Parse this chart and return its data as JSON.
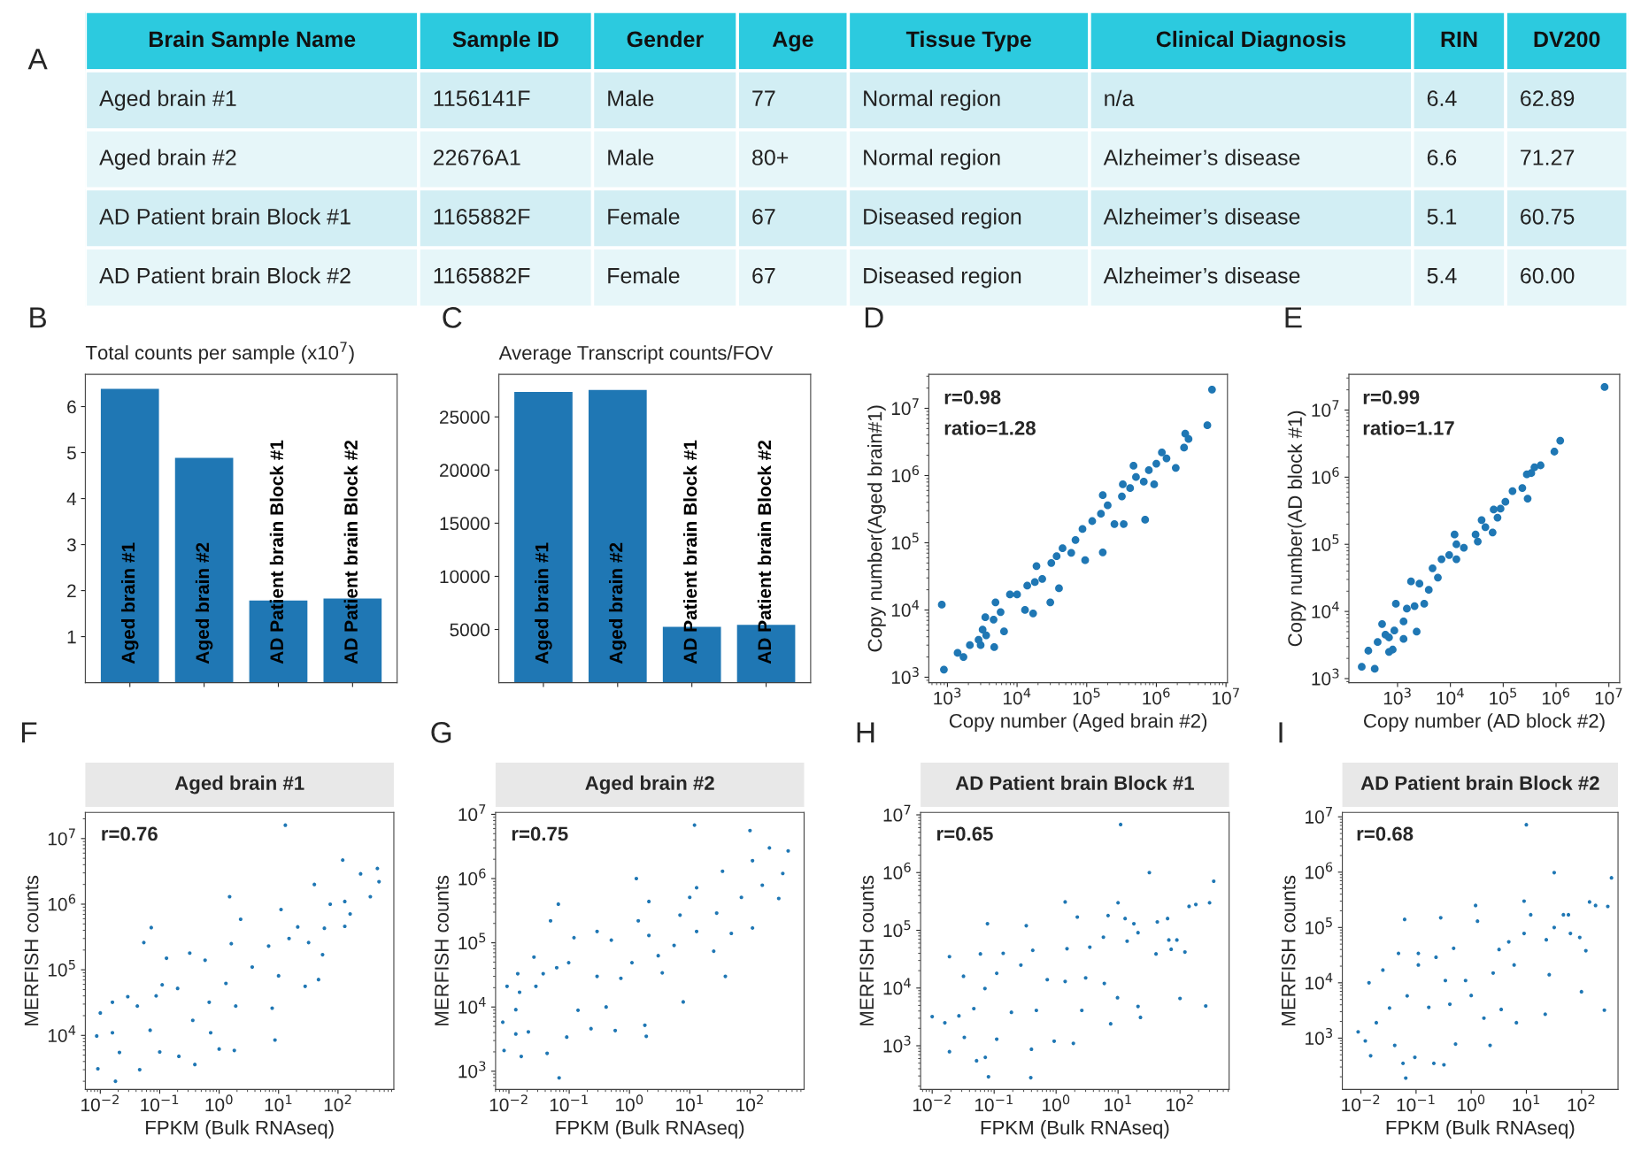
{
  "chart_data": [
    {
      "type": "other",
      "annotations": [
        "A"
      ],
      "categories": [
        "Brain Sample Name",
        "Sample ID",
        "Gender",
        "Age",
        "Tissue Type",
        "Clinical Diagnosis",
        "RIN",
        "DV200"
      ],
      "cell_labels": [
        [
          "Aged brain #1",
          "1156141F",
          "Male",
          "77",
          "Normal region",
          "n/a",
          "6.4",
          "62.89"
        ],
        [
          "Aged brain #2",
          "22676A1",
          "Male",
          "80+",
          "Normal region",
          "Alzheimer’s disease",
          "6.6",
          "71.27"
        ],
        [
          "AD Patient brain Block #1",
          "1165882F",
          "Female",
          "67",
          "Diseased region",
          "Alzheimer’s disease",
          "5.1",
          "60.75"
        ],
        [
          "AD Patient brain Block #2",
          "1165882F",
          "Female",
          "67",
          "Diseased region",
          "Alzheimer’s disease",
          "5.4",
          "60.00"
        ]
      ]
    },
    {
      "type": "bar",
      "title": "Total counts per sample (x10$^{7}$)",
      "annotations": [
        "B"
      ],
      "categories": [
        "Aged brain #1",
        "Aged brain #2",
        "AD Patient brain Block #1",
        "AD Patient brain Block #2"
      ],
      "values": [
        6.4,
        4.9,
        1.8,
        1.84
      ],
      "color": "#1f77b4",
      "ylim": [
        0,
        6.7
      ],
      "yticks": [
        1,
        2,
        3,
        4,
        5,
        6
      ]
    },
    {
      "type": "bar",
      "title": "Average Transcript counts/FOV",
      "annotations": [
        "C"
      ],
      "categories": [
        "Aged brain #1",
        "Aged brain #2",
        "AD Patient brain Block #1",
        "AD Patient brain Block #2"
      ],
      "values": [
        27400,
        27600,
        5300,
        5500
      ],
      "color": "#1f77b4",
      "ylim": [
        0,
        29000
      ],
      "yticks": [
        5000,
        10000,
        15000,
        20000,
        25000
      ]
    },
    {
      "type": "scatter",
      "annotations": [
        "D",
        "r=0.98",
        "ratio=1.28"
      ],
      "xlabel": "Copy number (Aged brain #2)",
      "ylabel": "Copy number(Aged brain#1)",
      "log": "xy",
      "marker": "circle",
      "xlim": [
        540,
        10500000
      ],
      "ylim": [
        830,
        32000000
      ],
      "xticks": [
        {
          "value": 1000,
          "label": "10$^{3}$"
        },
        {
          "value": 10000,
          "label": "10$^{4}$"
        },
        {
          "value": 100000,
          "label": "10$^{5}$"
        },
        {
          "value": 1000000,
          "label": "10$^{6}$"
        },
        {
          "value": 10000000,
          "label": "10$^{7}$"
        }
      ],
      "yticks": [
        {
          "value": 1000,
          "label": "10$^{3}$"
        },
        {
          "value": 10000,
          "label": "10$^{4}$"
        },
        {
          "value": 100000,
          "label": "10$^{5}$"
        },
        {
          "value": 1000000,
          "label": "10$^{6}$"
        },
        {
          "value": 10000000,
          "label": "10$^{7}$"
        }
      ],
      "series": [
        {
          "color": "#1f77b4",
          "x": [
            6300000.0,
            5400000.0,
            2600000.0,
            2900000.0,
            2500000.0,
            1200000.0,
            1400000.0,
            1900000.0,
            1000000.0,
            470000.0,
            780000.0,
            510000.0,
            660000.0,
            930000.0,
            330000.0,
            420000.0,
            690000.0,
            320000.0,
            170000.0,
            200000.0,
            250000.0,
            340000.0,
            160000.0,
            120000.0,
            87000.0,
            170000.0,
            95000.0,
            69000.0,
            60000.0,
            45000.0,
            31000.0,
            37000.0,
            40000.0,
            19000.0,
            23000.0,
            14000.0,
            18000.0,
            10000.0,
            7900.0,
            17000.0,
            30000.0,
            13000.0,
            4900.0,
            5800.0,
            4600.0,
            3500.0,
            3200.0,
            3600.0,
            4700.0,
            3000.0,
            2100.0,
            1700.0,
            1400.0,
            830,
            890,
            6500.0,
            2800.0
          ],
          "values": [
            19000000.0,
            5600000.0,
            4200000.0,
            3500000.0,
            2600000.0,
            2200000.0,
            1800000.0,
            1300000.0,
            1500000.0,
            1400000.0,
            1200000.0,
            950000.0,
            810000.0,
            740000.0,
            740000.0,
            650000.0,
            220000.0,
            490000.0,
            510000.0,
            360000.0,
            190000.0,
            190000.0,
            270000.0,
            210000.0,
            160000.0,
            72000.0,
            55000.0,
            110000.0,
            71000.0,
            83000.0,
            50000.0,
            63000.0,
            21000.0,
            45000.0,
            29000.0,
            23000.0,
            26000.0,
            17000.0,
            17000.0,
            8900.0,
            13000.0,
            10000.0,
            13000.0,
            9300.0,
            7200.0,
            7800.0,
            5100.0,
            4200.0,
            2800.0,
            3000.0,
            3000.0,
            2000.0,
            2300.0,
            12000.0,
            1300.0,
            4800.0,
            3600.0
          ]
        }
      ]
    },
    {
      "type": "scatter",
      "annotations": [
        "E",
        "r=0.99",
        "ratio=1.17"
      ],
      "xlabel": "Copy number (AD block #2)",
      "ylabel": "Copy number(AD block #1)",
      "log": "xy",
      "marker": "circle",
      "xlim": [
        120,
        16000000
      ],
      "ylim": [
        870,
        34000000
      ],
      "xticks": [
        {
          "value": 1000,
          "label": "10$^{3}$"
        },
        {
          "value": 10000,
          "label": "10$^{4}$"
        },
        {
          "value": 100000,
          "label": "10$^{5}$"
        },
        {
          "value": 1000000,
          "label": "10$^{6}$"
        },
        {
          "value": 10000000,
          "label": "10$^{7}$"
        }
      ],
      "yticks": [
        {
          "value": 1000,
          "label": "10$^{3}$"
        },
        {
          "value": 10000,
          "label": "10$^{4}$"
        },
        {
          "value": 100000,
          "label": "10$^{5}$"
        },
        {
          "value": 1000000,
          "label": "10$^{6}$"
        },
        {
          "value": 10000000,
          "label": "10$^{7}$"
        }
      ],
      "series": [
        {
          "color": "#1f77b4",
          "x": [
            8300000.0,
            1200000.0,
            930000.0,
            510000.0,
            390000.0,
            280000.0,
            340000.0,
            230000.0,
            150000.0,
            290000.0,
            110000.0,
            89000.0,
            66000.0,
            78000.0,
            39000.0,
            46000.0,
            33000.0,
            63000.0,
            30000.0,
            12000.0,
            18000.0,
            13000.0,
            9500.0,
            13000.0,
            6800.0,
            4600.0,
            5800.0,
            3900.0,
            2600.0,
            1800.0,
            3200.0,
            2100.0,
            2300.0,
            1500.0,
            930,
            1300.0,
            870,
            690,
            510,
            1300.0,
            810,
            420,
            690,
            280,
            210,
            370,
            590
          ],
          "values": [
            22000000.0,
            3500000.0,
            2400000.0,
            1500000.0,
            1400000.0,
            1100000.0,
            1150000.0,
            690000.0,
            620000.0,
            480000.0,
            430000.0,
            340000.0,
            330000.0,
            250000.0,
            230000.0,
            180000.0,
            110000.0,
            150000.0,
            140000.0,
            140000.0,
            89000.0,
            100000.0,
            69000.0,
            60000.0,
            60000.0,
            44000.0,
            32000.0,
            21000.0,
            26000.0,
            28000.0,
            13000.0,
            12000.0,
            5000.0,
            11000.0,
            13000.0,
            7100.0,
            5200.0,
            4100.0,
            6500.0,
            3900.0,
            2700.0,
            3500.0,
            2500.0,
            2600.0,
            1500.0,
            1400.0,
            4500.0
          ]
        }
      ]
    },
    {
      "type": "scatter",
      "title": "Aged brain #1",
      "annotations": [
        "F",
        "r=0.76"
      ],
      "xlabel": "FPKM (Bulk RNAseq)",
      "ylabel": "MERFISH counts",
      "log": "xy",
      "marker": "circle",
      "xlim": [
        0.0056,
        870
      ],
      "ylim": [
        1500,
        25000000
      ],
      "xticks": [
        {
          "value": 0.01,
          "label": "10$^{−2}$"
        },
        {
          "value": 0.1,
          "label": "10$^{−1}$"
        },
        {
          "value": 1,
          "label": "10$^{0}$"
        },
        {
          "value": 10,
          "label": "10$^{1}$"
        },
        {
          "value": 100,
          "label": "10$^{2}$"
        }
      ],
      "yticks": [
        {
          "value": 10000,
          "label": "10$^{4}$"
        },
        {
          "value": 100000,
          "label": "10$^{5}$"
        },
        {
          "value": 1000000,
          "label": "10$^{6}$"
        },
        {
          "value": 10000000,
          "label": "10$^{7}$"
        }
      ],
      "series": [
        {
          "color": "#1f77b4",
          "x": [
            13,
            120,
            460,
            240,
            490,
            40,
            350,
            130,
            1.5,
            11,
            74,
            160,
            59,
            130,
            21,
            2.3,
            0.072,
            0.054,
            0.13,
            15,
            32,
            55,
            6.8,
            3.6,
            1.6,
            0.32,
            0.58,
            28,
            47,
            10,
            1.3,
            0.11,
            7.8,
            8.7,
            1.9,
            0.68,
            0.2,
            0.029,
            0.087,
            0.042,
            0.016,
            0.01,
            0.016,
            0.0087,
            0.021,
            0.046,
            0.018,
            0.0091,
            0.1,
            0.39,
            0.21,
            1.0,
            1.8,
            0.36,
            0.069,
            0.72
          ],
          "values": [
            16000000.0,
            4700000.0,
            3500000.0,
            2900000.0,
            2200000.0,
            2000000.0,
            1300000.0,
            1100000.0,
            1300000.0,
            830000.0,
            1000000.0,
            710000.0,
            430000.0,
            460000.0,
            450000.0,
            590000.0,
            440000.0,
            260000.0,
            150000.0,
            300000.0,
            260000.0,
            170000.0,
            230000.0,
            110000.0,
            250000.0,
            180000.0,
            140000.0,
            56000.0,
            71000.0,
            81000.0,
            62000.0,
            59000.0,
            26000.0,
            8500.0,
            28000.0,
            32000.0,
            52000.0,
            39000.0,
            40000.0,
            28000.0,
            32000.0,
            22000.0,
            11000.0,
            9800.0,
            5500.0,
            3000.0,
            2000.0,
            3100.0,
            5600.0,
            3600.0,
            4800.0,
            6200.0,
            5900.0,
            17000.0,
            12000.0,
            11000.0
          ]
        }
      ]
    },
    {
      "type": "scatter",
      "title": "Aged brain #2",
      "annotations": [
        "G",
        "r=0.75"
      ],
      "xlabel": "FPKM (Bulk RNAseq)",
      "ylabel": "MERFISH counts",
      "log": "xy",
      "marker": "circle",
      "xlim": [
        0.006,
        790
      ],
      "ylim": [
        520,
        10700000
      ],
      "xticks": [
        {
          "value": 0.01,
          "label": "10$^{−2}$"
        },
        {
          "value": 0.1,
          "label": "10$^{−1}$"
        },
        {
          "value": 1,
          "label": "10$^{0}$"
        },
        {
          "value": 10,
          "label": "10$^{1}$"
        },
        {
          "value": 100,
          "label": "10$^{2}$"
        }
      ],
      "yticks": [
        {
          "value": 1000,
          "label": "10$^{3}$"
        },
        {
          "value": 10000,
          "label": "10$^{4}$"
        },
        {
          "value": 100000,
          "label": "10$^{5}$"
        },
        {
          "value": 1000000,
          "label": "10$^{6}$"
        },
        {
          "value": 10000000,
          "label": "10$^{7}$"
        }
      ],
      "series": [
        {
          "color": "#1f77b4",
          "x": [
            12,
            100,
            210,
            430,
            110,
            350,
            35,
            1.3,
            13,
            160,
            300,
            72,
            0.066,
            2.1,
            0.049,
            1.4,
            10,
            6.9,
            28,
            49,
            110,
            13,
            2.1,
            0.29,
            0.12,
            0.5,
            5.5,
            25,
            3.0,
            1.1,
            39,
            7.8,
            3.5,
            0.72,
            0.29,
            0.098,
            0.026,
            0.014,
            0.062,
            0.037,
            0.0093,
            0.028,
            0.015,
            0.41,
            0.14,
            0.013,
            0.0079,
            0.013,
            0.021,
            0.23,
            0.58,
            1.8,
            1.9,
            0.091,
            0.0083,
            0.016,
            0.043,
            0.068
          ],
          "values": [
            6800000.0,
            5600000.0,
            3000000.0,
            2700000.0,
            1900000.0,
            1200000.0,
            1300000.0,
            1000000.0,
            720000.0,
            790000.0,
            490000.0,
            510000.0,
            400000.0,
            440000.0,
            220000.0,
            220000.0,
            510000.0,
            270000.0,
            290000.0,
            140000.0,
            170000.0,
            150000.0,
            130000.0,
            150000.0,
            120000.0,
            110000.0,
            91000.0,
            74000.0,
            63000.0,
            49000.0,
            30000.0,
            12000.0,
            34000.0,
            28000.0,
            30000.0,
            49000.0,
            60000.0,
            33000.0,
            41000.0,
            33000.0,
            21000.0,
            21000.0,
            17000.0,
            10000.0,
            8900.0,
            9100.0,
            5800.0,
            3800.0,
            4100.0,
            4600.0,
            4300.0,
            5200.0,
            3500.0,
            3400.0,
            2100.0,
            1700.0,
            1900.0,
            790
          ]
        }
      ]
    },
    {
      "type": "scatter",
      "title": "AD Patient brain Block #1",
      "annotations": [
        "H",
        "r=0.65"
      ],
      "xlabel": "FPKM (Bulk RNAseq)",
      "ylabel": "MERFISH counts",
      "log": "xy",
      "marker": "circle",
      "xlim": [
        0.0065,
        620
      ],
      "ylim": [
        175,
        11000000
      ],
      "xticks": [
        {
          "value": 0.01,
          "label": "10$^{−2}$"
        },
        {
          "value": 0.1,
          "label": "10$^{−1}$"
        },
        {
          "value": 1,
          "label": "10$^{0}$"
        },
        {
          "value": 10,
          "label": "10$^{1}$"
        },
        {
          "value": 100,
          "label": "10$^{2}$"
        }
      ],
      "yticks": [
        {
          "value": 1000,
          "label": "10$^{3}$"
        },
        {
          "value": 10000,
          "label": "10$^{4}$"
        },
        {
          "value": 100000,
          "label": "10$^{5}$"
        },
        {
          "value": 1000000,
          "label": "10$^{6}$"
        },
        {
          "value": 10000000,
          "label": "10$^{7}$"
        }
      ],
      "series": [
        {
          "color": "#1f77b4",
          "x": [
            11,
            32,
            350,
            300,
            140,
            180,
            1.4,
            10,
            0.078,
            0.33,
            2.2,
            6.9,
            13,
            18,
            43,
            63,
            21,
            14,
            5.8,
            66,
            89,
            120,
            72,
            41,
            3.5,
            1.5,
            0.42,
            0.14,
            0.06,
            0.019,
            0.032,
            0.11,
            0.27,
            0.72,
            1.4,
            3.0,
            6.0,
            9.8,
            100,
            260,
            21,
            23,
            7.6,
            2.6,
            0.48,
            0.19,
            0.071,
            0.047,
            0.027,
            0.01,
            0.016,
            0.033,
            0.019,
            0.052,
            0.072,
            0.11,
            0.4,
            0.081,
            0.39,
            0.93,
            1.9
          ],
          "values": [
            6800000.0,
            1000000.0,
            710000.0,
            300000.0,
            260000.0,
            280000.0,
            310000.0,
            300000.0,
            130000.0,
            120000.0,
            170000.0,
            180000.0,
            160000.0,
            130000.0,
            140000.0,
            160000.0,
            91000.0,
            65000.0,
            76000.0,
            68000.0,
            68000.0,
            42000.0,
            47000.0,
            39000.0,
            51000.0,
            48000.0,
            45000.0,
            40000.0,
            39000.0,
            35000.0,
            16000.0,
            18000.0,
            25000.0,
            14000.0,
            13000.0,
            15000.0,
            12000.0,
            6800.0,
            6600.0,
            4900.0,
            4800.0,
            3100.0,
            2400.0,
            4100.0,
            4100.0,
            3800.0,
            9800.0,
            4400.0,
            3300.0,
            3200.0,
            2500.0,
            1400.0,
            790,
            550,
            630,
            1300.0,
            870,
            290,
            280,
            1200.0,
            1100.0
          ]
        }
      ]
    },
    {
      "type": "scatter",
      "title": "AD Patient brain Block #2",
      "annotations": [
        "I",
        "r=0.68"
      ],
      "xlabel": "FPKM (Bulk RNAseq)",
      "ylabel": "MERFISH counts",
      "log": "xy",
      "marker": "circle",
      "xlim": [
        0.0046,
        460
      ],
      "ylim": [
        118,
        12000000
      ],
      "xticks": [
        {
          "value": 0.01,
          "label": "10$^{−2}$"
        },
        {
          "value": 0.1,
          "label": "10$^{−1}$"
        },
        {
          "value": 1,
          "label": "10$^{0}$"
        },
        {
          "value": 10,
          "label": "10$^{1}$"
        },
        {
          "value": 100,
          "label": "10$^{2}$"
        }
      ],
      "yticks": [
        {
          "value": 1000,
          "label": "10$^{3}$"
        },
        {
          "value": 10000,
          "label": "10$^{4}$"
        },
        {
          "value": 100000,
          "label": "10$^{5}$"
        },
        {
          "value": 1000000,
          "label": "10$^{6}$"
        },
        {
          "value": 10000000,
          "label": "10$^{7}$"
        }
      ],
      "series": [
        {
          "color": "#1f77b4",
          "x": [
            10,
            32,
            350,
            140,
            180,
            300,
            9.1,
            1.2,
            0.28,
            0.062,
            12,
            47,
            58,
            32,
            63,
            93,
            120,
            23,
            9.1,
            4.8,
            3.2,
            1.3,
            0.48,
            0.23,
            0.11,
            0.048,
            0.11,
            0.025,
            0.014,
            0.34,
            0.79,
            2.5,
            6.0,
            26,
            100,
            260,
            22,
            6.6,
            3.5,
            1.7,
            1.0,
            0.41,
            0.17,
            0.069,
            0.033,
            0.019,
            0.0089,
            0.012,
            0.015,
            0.041,
            0.058,
            0.095,
            0.21,
            0.32,
            0.065,
            0.52,
            2.2
          ],
          "values": [
            7200000.0,
            980000.0,
            790000.0,
            290000.0,
            250000.0,
            240000.0,
            300000.0,
            250000.0,
            150000.0,
            140000.0,
            170000.0,
            170000.0,
            170000.0,
            100000.0,
            78000.0,
            66000.0,
            38000.0,
            60000.0,
            78000.0,
            55000.0,
            40000.0,
            130000.0,
            42000.0,
            29000.0,
            21000.0,
            34000.0,
            34000.0,
            17000.0,
            10000.0,
            11000.0,
            11000.0,
            15000.0,
            21000.0,
            14000.0,
            6900.0,
            3200.0,
            2700.0,
            1900.0,
            3300.0,
            2300.0,
            5900.0,
            4100.0,
            3600.0,
            5800.0,
            3500.0,
            1900.0,
            1300.0,
            890,
            480,
            740,
            350,
            450,
            350,
            330,
            190,
            780,
            740
          ]
        }
      ]
    }
  ]
}
